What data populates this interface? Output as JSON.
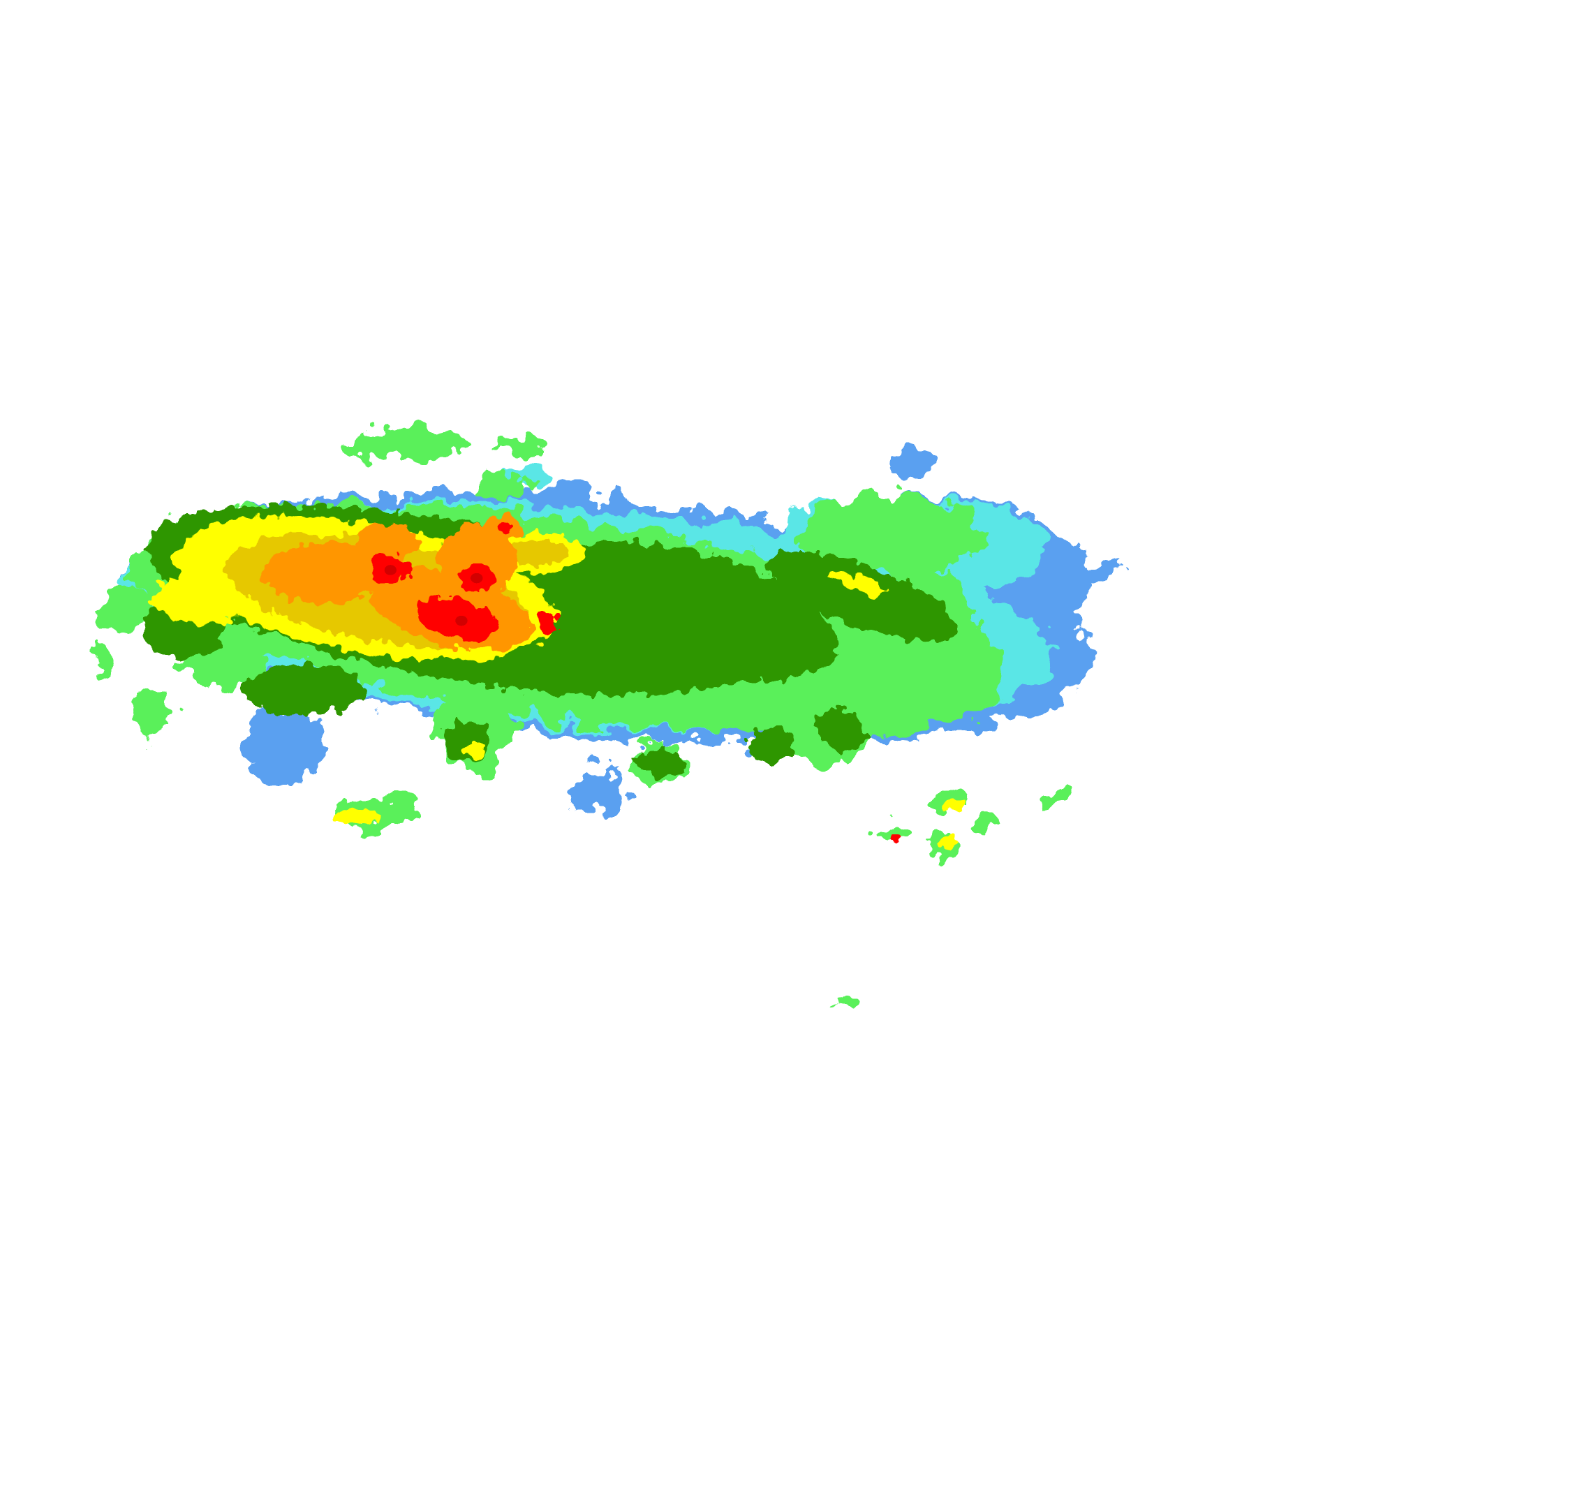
{
  "map": {
    "type": "radar-reflectivity",
    "background": "#ffffff",
    "palette": {
      "light_blue": "#5aa0f0",
      "cyan": "#5ae6e6",
      "light_green": "#5af05a",
      "dark_green": "#2d9600",
      "yellow": "#ffff00",
      "gold": "#e6c800",
      "orange": "#ff9600",
      "red": "#ff0000",
      "dark_red": "#d20000"
    }
  }
}
